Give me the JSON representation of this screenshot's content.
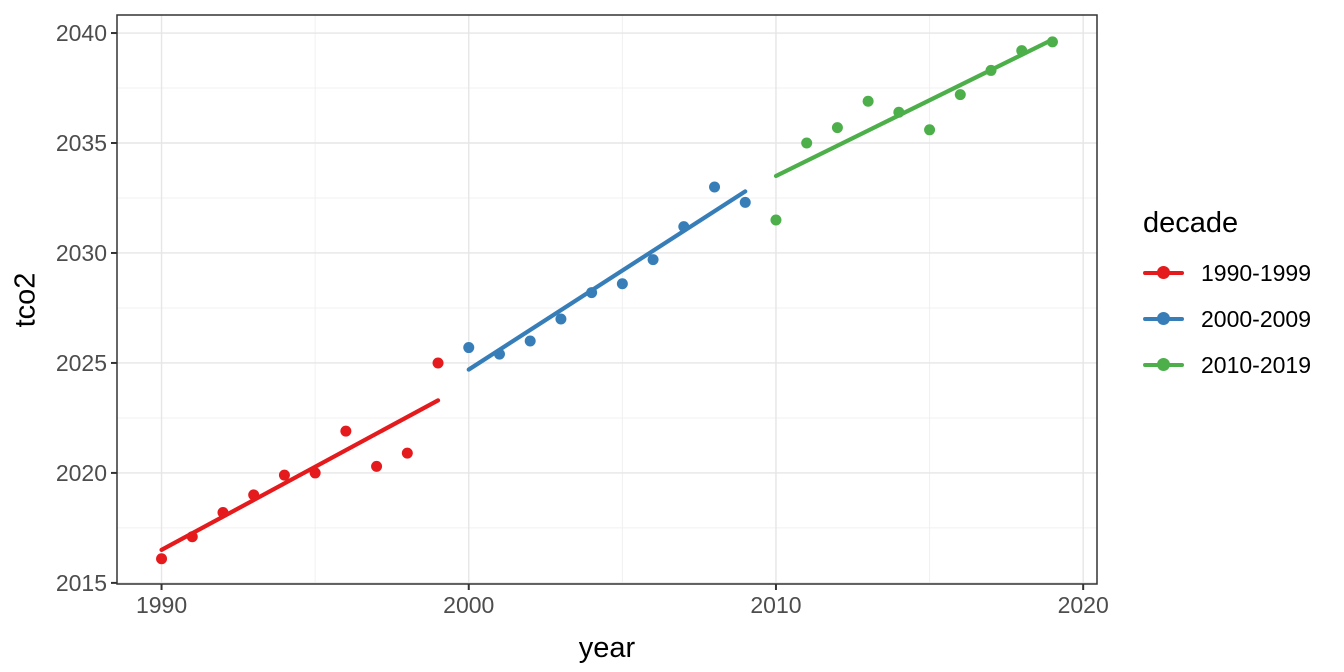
{
  "chart_data": {
    "type": "scatter",
    "title": "",
    "xlabel": "year",
    "ylabel": "tco2",
    "legend_title": "decade",
    "legend_position": "right",
    "grid": true,
    "panel_border_color": "#333333",
    "major_grid_color": "#e6e6e6",
    "minor_grid_color": "#f0f0f0",
    "tick_label_color": "#4d4d4d",
    "x_range": [
      1988.55,
      2020.45
    ],
    "y_range": [
      2014.95,
      2040.82
    ],
    "x_ticks": [
      1990,
      2000,
      2010,
      2020
    ],
    "y_ticks": [
      2015,
      2020,
      2025,
      2030,
      2035,
      2040
    ],
    "x_minor_gridlines": [
      1995,
      2005,
      2015
    ],
    "y_minor_gridlines": [
      2017.5,
      2022.5,
      2027.5,
      2032.5,
      2037.5
    ],
    "series": [
      {
        "name": "1990-1999",
        "color": "#E41A1C",
        "x": [
          1990,
          1991,
          1992,
          1993,
          1994,
          1995,
          1996,
          1997,
          1998,
          1999
        ],
        "y": [
          2016.1,
          2017.1,
          2018.2,
          2019.0,
          2019.9,
          2020.0,
          2021.9,
          2020.3,
          2020.9,
          2025.0
        ],
        "trend": {
          "x": [
            1990,
            1999
          ],
          "y": [
            2016.5,
            2023.3
          ]
        }
      },
      {
        "name": "2000-2009",
        "color": "#377EB8",
        "x": [
          2000,
          2001,
          2002,
          2003,
          2004,
          2005,
          2006,
          2007,
          2008,
          2009
        ],
        "y": [
          2025.7,
          2025.4,
          2026.0,
          2027.0,
          2028.2,
          2028.6,
          2029.7,
          2031.2,
          2033.0,
          2032.3
        ],
        "trend": {
          "x": [
            2000,
            2009
          ],
          "y": [
            2024.7,
            2032.8
          ]
        }
      },
      {
        "name": "2010-2019",
        "color": "#4DAF4A",
        "x": [
          2010,
          2011,
          2012,
          2013,
          2014,
          2015,
          2016,
          2017,
          2018,
          2019
        ],
        "y": [
          2031.5,
          2035.0,
          2035.7,
          2036.9,
          2036.4,
          2035.6,
          2037.2,
          2038.3,
          2039.2,
          2039.6
        ],
        "trend": {
          "x": [
            2010,
            2019
          ],
          "y": [
            2033.5,
            2039.7
          ]
        }
      }
    ]
  }
}
